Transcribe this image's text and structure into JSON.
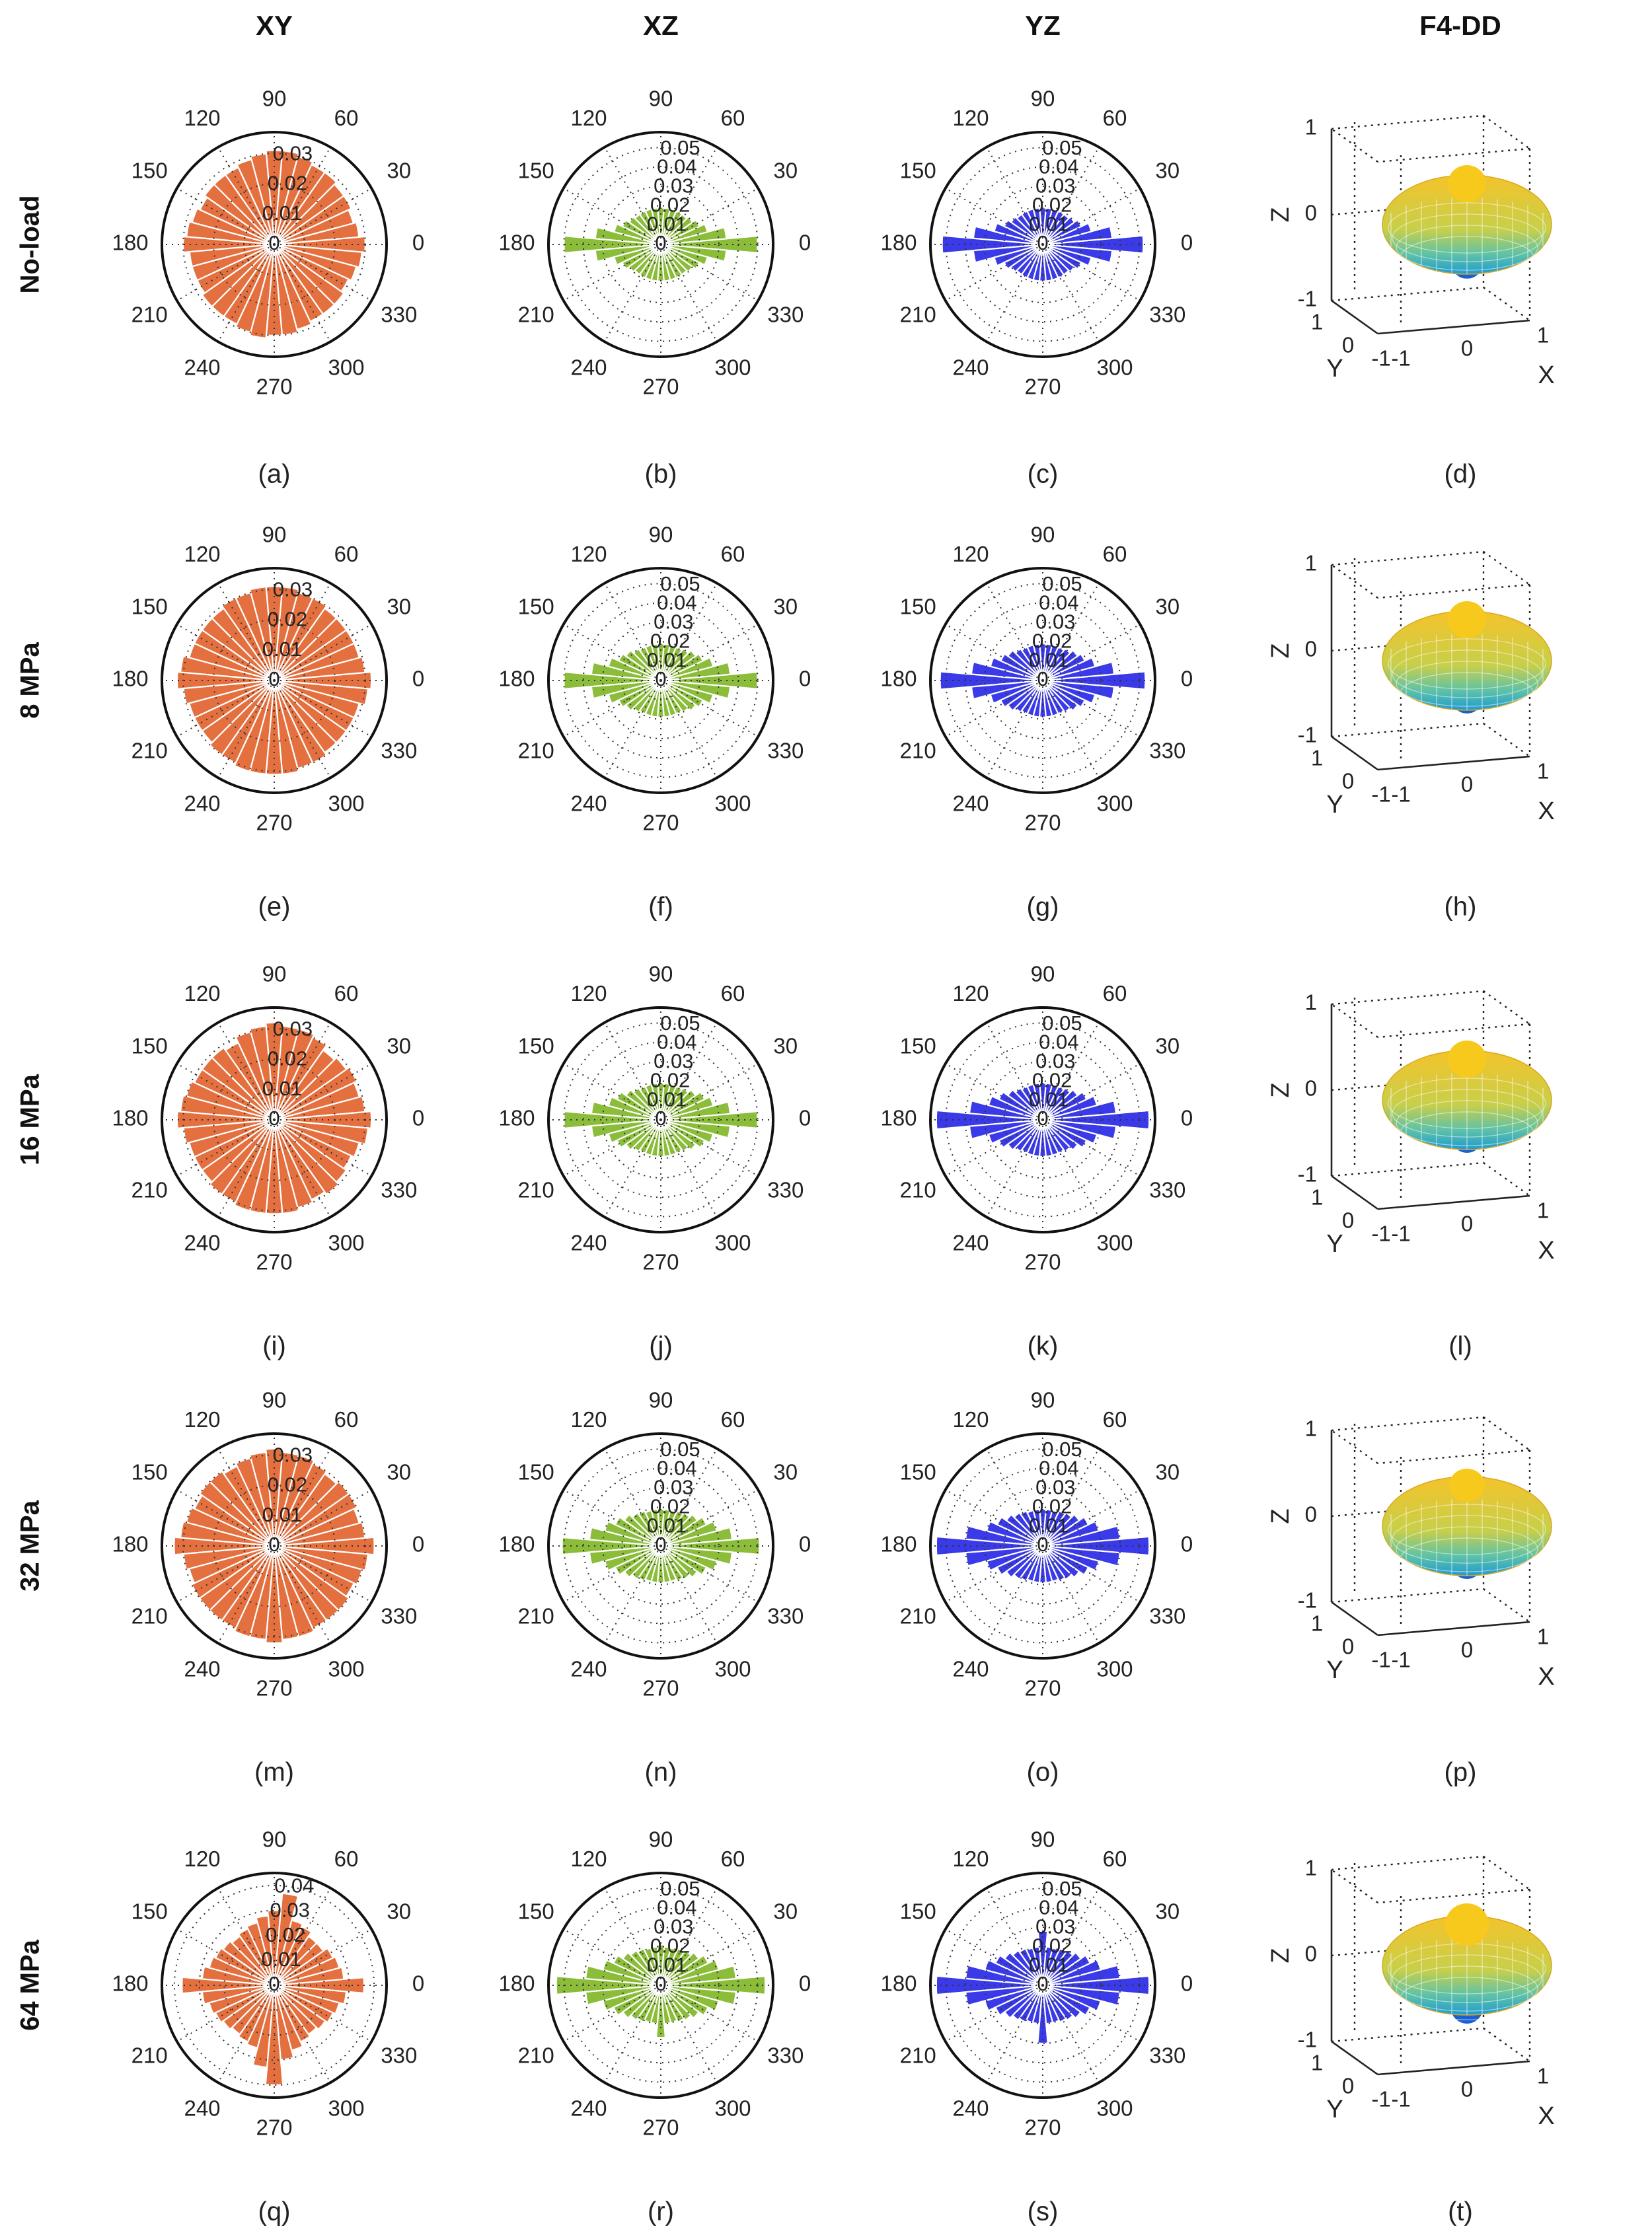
{
  "chart_data": {
    "type": "polar-histogram-grid",
    "column_headers": [
      "XY",
      "XZ",
      "YZ",
      "F4-DD"
    ],
    "row_labels": [
      "No-load",
      "8 MPa",
      "16 MPa",
      "32 MPa",
      "64 MPa"
    ],
    "panel_labels": [
      "(a)",
      "(b)",
      "(c)",
      "(d)",
      "(e)",
      "(f)",
      "(g)",
      "(h)",
      "(i)",
      "(j)",
      "(k)",
      "(l)",
      "(m)",
      "(n)",
      "(o)",
      "(p)",
      "(q)",
      "(r)",
      "(s)",
      "(t)"
    ],
    "angle_ticks": [
      "0",
      "30",
      "60",
      "90",
      "120",
      "150",
      "180",
      "210",
      "240",
      "270",
      "300",
      "330"
    ],
    "colors": {
      "XY": "#e4703f",
      "XZ": "#8bbd3a",
      "YZ": "#3a3ae8",
      "surface_top": "#f5c32a",
      "surface_bottom": "#1f9bd1"
    },
    "plane_radial_ticks": {
      "XY": [
        "0",
        "0.01",
        "0.02",
        "0.03"
      ],
      "XY_64": [
        "0",
        "0.01",
        "0.02",
        "0.03",
        "0.04"
      ],
      "XZ": [
        "0",
        "0.01",
        "0.02",
        "0.03",
        "0.04",
        "0.05"
      ],
      "YZ": [
        "0",
        "0.01",
        "0.02",
        "0.03",
        "0.04",
        "0.05"
      ]
    },
    "surface_axes": {
      "z_ticks": [
        "1",
        "0",
        "-1"
      ],
      "y_ticks": [
        "1",
        "0",
        "-1"
      ],
      "x_ticks": [
        "-1",
        "0",
        "1"
      ],
      "z_label": "Z",
      "y_label": "Y",
      "x_label": "X"
    },
    "bin_angles_deg": [
      0,
      10,
      20,
      30,
      40,
      50,
      60,
      70,
      80,
      90,
      100,
      110,
      120,
      130,
      140,
      150,
      160,
      170,
      180,
      190,
      200,
      210,
      220,
      230,
      240,
      250,
      260,
      270,
      280,
      290,
      300,
      310,
      320,
      330,
      340,
      350
    ],
    "histograms": [
      {
        "row": "No-load",
        "plane": "XY",
        "rmax": 0.037,
        "values": [
          0.03,
          0.028,
          0.027,
          0.028,
          0.028,
          0.029,
          0.029,
          0.03,
          0.031,
          0.031,
          0.03,
          0.029,
          0.028,
          0.028,
          0.028,
          0.027,
          0.028,
          0.029,
          0.03,
          0.028,
          0.028,
          0.028,
          0.029,
          0.029,
          0.029,
          0.03,
          0.031,
          0.03,
          0.03,
          0.029,
          0.028,
          0.028,
          0.028,
          0.027,
          0.028,
          0.029
        ]
      },
      {
        "row": "No-load",
        "plane": "XZ",
        "rmax": 0.058,
        "values": [
          0.05,
          0.034,
          0.025,
          0.022,
          0.02,
          0.019,
          0.019,
          0.019,
          0.019,
          0.019,
          0.019,
          0.019,
          0.019,
          0.019,
          0.02,
          0.022,
          0.025,
          0.034,
          0.05,
          0.034,
          0.025,
          0.022,
          0.02,
          0.019,
          0.019,
          0.019,
          0.019,
          0.019,
          0.019,
          0.019,
          0.019,
          0.019,
          0.02,
          0.022,
          0.025,
          0.034
        ]
      },
      {
        "row": "No-load",
        "plane": "YZ",
        "rmax": 0.058,
        "values": [
          0.052,
          0.036,
          0.026,
          0.022,
          0.02,
          0.019,
          0.019,
          0.019,
          0.019,
          0.019,
          0.019,
          0.019,
          0.019,
          0.019,
          0.02,
          0.022,
          0.026,
          0.036,
          0.052,
          0.036,
          0.026,
          0.022,
          0.02,
          0.019,
          0.019,
          0.019,
          0.019,
          0.019,
          0.019,
          0.019,
          0.019,
          0.019,
          0.02,
          0.022,
          0.026,
          0.036
        ]
      },
      {
        "row": "8 MPa",
        "plane": "XY",
        "rmax": 0.037,
        "values": [
          0.032,
          0.03,
          0.029,
          0.029,
          0.029,
          0.029,
          0.03,
          0.03,
          0.031,
          0.031,
          0.031,
          0.03,
          0.03,
          0.029,
          0.029,
          0.029,
          0.029,
          0.031,
          0.032,
          0.03,
          0.029,
          0.029,
          0.029,
          0.03,
          0.03,
          0.031,
          0.031,
          0.031,
          0.031,
          0.03,
          0.03,
          0.029,
          0.029,
          0.029,
          0.029,
          0.031
        ]
      },
      {
        "row": "8 MPa",
        "plane": "XZ",
        "rmax": 0.058,
        "values": [
          0.05,
          0.036,
          0.028,
          0.024,
          0.022,
          0.02,
          0.019,
          0.019,
          0.019,
          0.019,
          0.019,
          0.019,
          0.019,
          0.02,
          0.022,
          0.024,
          0.028,
          0.036,
          0.05,
          0.036,
          0.028,
          0.024,
          0.022,
          0.02,
          0.019,
          0.019,
          0.019,
          0.019,
          0.019,
          0.019,
          0.019,
          0.02,
          0.022,
          0.024,
          0.028,
          0.036
        ]
      },
      {
        "row": "8 MPa",
        "plane": "YZ",
        "rmax": 0.058,
        "values": [
          0.053,
          0.037,
          0.028,
          0.024,
          0.022,
          0.02,
          0.019,
          0.019,
          0.019,
          0.019,
          0.019,
          0.019,
          0.019,
          0.02,
          0.022,
          0.024,
          0.028,
          0.037,
          0.053,
          0.037,
          0.028,
          0.024,
          0.022,
          0.02,
          0.019,
          0.019,
          0.019,
          0.019,
          0.019,
          0.019,
          0.019,
          0.02,
          0.022,
          0.024,
          0.028,
          0.037
        ]
      },
      {
        "row": "16 MPa",
        "plane": "XY",
        "rmax": 0.037,
        "values": [
          0.032,
          0.03,
          0.029,
          0.03,
          0.029,
          0.028,
          0.03,
          0.031,
          0.031,
          0.032,
          0.031,
          0.03,
          0.028,
          0.029,
          0.029,
          0.029,
          0.03,
          0.031,
          0.032,
          0.03,
          0.029,
          0.029,
          0.029,
          0.03,
          0.03,
          0.031,
          0.031,
          0.031,
          0.031,
          0.03,
          0.029,
          0.03,
          0.029,
          0.028,
          0.029,
          0.031
        ]
      },
      {
        "row": "16 MPa",
        "plane": "XZ",
        "rmax": 0.058,
        "values": [
          0.05,
          0.036,
          0.028,
          0.025,
          0.022,
          0.02,
          0.019,
          0.019,
          0.019,
          0.019,
          0.019,
          0.019,
          0.019,
          0.02,
          0.022,
          0.025,
          0.028,
          0.036,
          0.05,
          0.036,
          0.028,
          0.025,
          0.022,
          0.02,
          0.019,
          0.019,
          0.019,
          0.019,
          0.019,
          0.019,
          0.019,
          0.02,
          0.022,
          0.025,
          0.028,
          0.036
        ]
      },
      {
        "row": "16 MPa",
        "plane": "YZ",
        "rmax": 0.058,
        "values": [
          0.055,
          0.038,
          0.029,
          0.025,
          0.022,
          0.02,
          0.019,
          0.019,
          0.019,
          0.019,
          0.019,
          0.019,
          0.019,
          0.02,
          0.022,
          0.025,
          0.029,
          0.038,
          0.055,
          0.038,
          0.029,
          0.025,
          0.022,
          0.02,
          0.019,
          0.019,
          0.019,
          0.019,
          0.019,
          0.019,
          0.019,
          0.02,
          0.022,
          0.025,
          0.029,
          0.038
        ]
      },
      {
        "row": "32 MPa",
        "plane": "XY",
        "rmax": 0.037,
        "values": [
          0.033,
          0.03,
          0.029,
          0.03,
          0.03,
          0.029,
          0.03,
          0.031,
          0.031,
          0.032,
          0.031,
          0.03,
          0.029,
          0.03,
          0.03,
          0.029,
          0.03,
          0.031,
          0.033,
          0.03,
          0.029,
          0.03,
          0.03,
          0.03,
          0.03,
          0.031,
          0.031,
          0.032,
          0.031,
          0.031,
          0.03,
          0.03,
          0.03,
          0.029,
          0.03,
          0.031
        ]
      },
      {
        "row": "32 MPa",
        "plane": "XZ",
        "rmax": 0.058,
        "values": [
          0.051,
          0.037,
          0.03,
          0.026,
          0.023,
          0.021,
          0.02,
          0.019,
          0.019,
          0.019,
          0.019,
          0.019,
          0.02,
          0.021,
          0.023,
          0.026,
          0.03,
          0.037,
          0.051,
          0.037,
          0.03,
          0.026,
          0.023,
          0.021,
          0.02,
          0.019,
          0.019,
          0.019,
          0.019,
          0.019,
          0.02,
          0.021,
          0.023,
          0.026,
          0.03,
          0.037
        ]
      },
      {
        "row": "32 MPa",
        "plane": "YZ",
        "rmax": 0.058,
        "values": [
          0.055,
          0.04,
          0.03,
          0.026,
          0.023,
          0.021,
          0.02,
          0.019,
          0.019,
          0.019,
          0.019,
          0.019,
          0.02,
          0.021,
          0.023,
          0.026,
          0.03,
          0.04,
          0.055,
          0.04,
          0.03,
          0.026,
          0.023,
          0.021,
          0.02,
          0.019,
          0.019,
          0.019,
          0.019,
          0.019,
          0.02,
          0.021,
          0.023,
          0.026,
          0.03,
          0.04
        ]
      },
      {
        "row": "64 MPa",
        "plane": "XY",
        "rmax": 0.045,
        "values": [
          0.036,
          0.028,
          0.027,
          0.026,
          0.024,
          0.024,
          0.026,
          0.027,
          0.037,
          0.03,
          0.028,
          0.026,
          0.025,
          0.024,
          0.025,
          0.026,
          0.027,
          0.029,
          0.037,
          0.029,
          0.027,
          0.026,
          0.025,
          0.024,
          0.025,
          0.026,
          0.033,
          0.04,
          0.03,
          0.027,
          0.025,
          0.024,
          0.025,
          0.026,
          0.027,
          0.029
        ]
      },
      {
        "row": "64 MPa",
        "plane": "XZ",
        "rmax": 0.058,
        "values": [
          0.054,
          0.039,
          0.031,
          0.027,
          0.024,
          0.022,
          0.021,
          0.02,
          0.02,
          0.021,
          0.02,
          0.02,
          0.021,
          0.022,
          0.024,
          0.027,
          0.031,
          0.039,
          0.054,
          0.039,
          0.031,
          0.027,
          0.024,
          0.022,
          0.021,
          0.02,
          0.02,
          0.027,
          0.02,
          0.02,
          0.021,
          0.022,
          0.024,
          0.027,
          0.031,
          0.039
        ]
      },
      {
        "row": "64 MPa",
        "plane": "YZ",
        "rmax": 0.058,
        "values": [
          0.055,
          0.04,
          0.031,
          0.027,
          0.024,
          0.022,
          0.021,
          0.02,
          0.02,
          0.028,
          0.02,
          0.02,
          0.021,
          0.022,
          0.024,
          0.027,
          0.031,
          0.04,
          0.055,
          0.04,
          0.031,
          0.027,
          0.024,
          0.022,
          0.021,
          0.02,
          0.02,
          0.03,
          0.02,
          0.02,
          0.021,
          0.022,
          0.024,
          0.027,
          0.031,
          0.04
        ]
      }
    ],
    "surfaces": [
      {
        "row": "No-load",
        "cap_size": 0.4,
        "bottom_lobe": 0.3
      },
      {
        "row": "8 MPa",
        "cap_size": 0.4,
        "bottom_lobe": 0.2
      },
      {
        "row": "16 MPa",
        "cap_size": 0.4,
        "bottom_lobe": 0.2
      },
      {
        "row": "32 MPa",
        "cap_size": 0.3,
        "bottom_lobe": 0.2
      },
      {
        "row": "64 MPa",
        "cap_size": 0.6,
        "bottom_lobe": 0.5
      }
    ]
  }
}
